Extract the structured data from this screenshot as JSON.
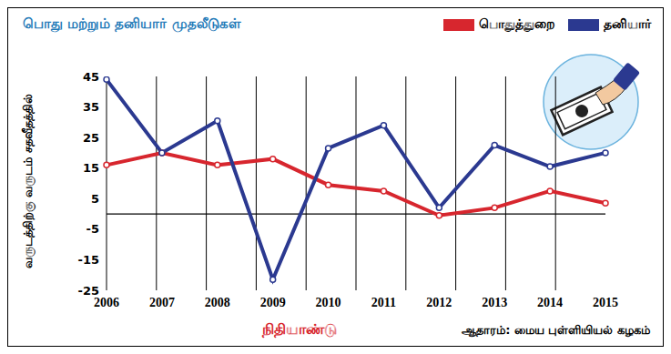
{
  "chart_data": {
    "type": "line",
    "title": "பொது மற்றும் தனியார் முதலீடுகள்",
    "x_label": "நிதியாண்டு",
    "y_label": "வருடத்திற்கு வருடம் சதவீதத்தில்",
    "annotations": [
      "ஆதாரம்: மைய புள்ளியியல் கழகம்"
    ],
    "categories": [
      "2006",
      "2007",
      "2008",
      "2009",
      "2010",
      "2011",
      "2012",
      "2013",
      "2014",
      "2015"
    ],
    "series": [
      {
        "name": "பொதுத்துறை",
        "color": "#d7262e",
        "marker": "circle",
        "values": [
          16,
          20,
          16,
          18,
          9.5,
          7.5,
          -0.5,
          2,
          7.5,
          3.5
        ]
      },
      {
        "name": "தனியார்",
        "color": "#2b3990",
        "marker": "circle",
        "values": [
          44,
          20,
          30.5,
          -21.5,
          21.5,
          29,
          2,
          22.5,
          15.5,
          20
        ]
      }
    ],
    "ylim": [
      -25,
      45
    ],
    "yticks": [
      -25,
      -15,
      -5,
      5,
      15,
      25,
      35,
      45
    ],
    "grid": true,
    "legend": "top-right"
  }
}
